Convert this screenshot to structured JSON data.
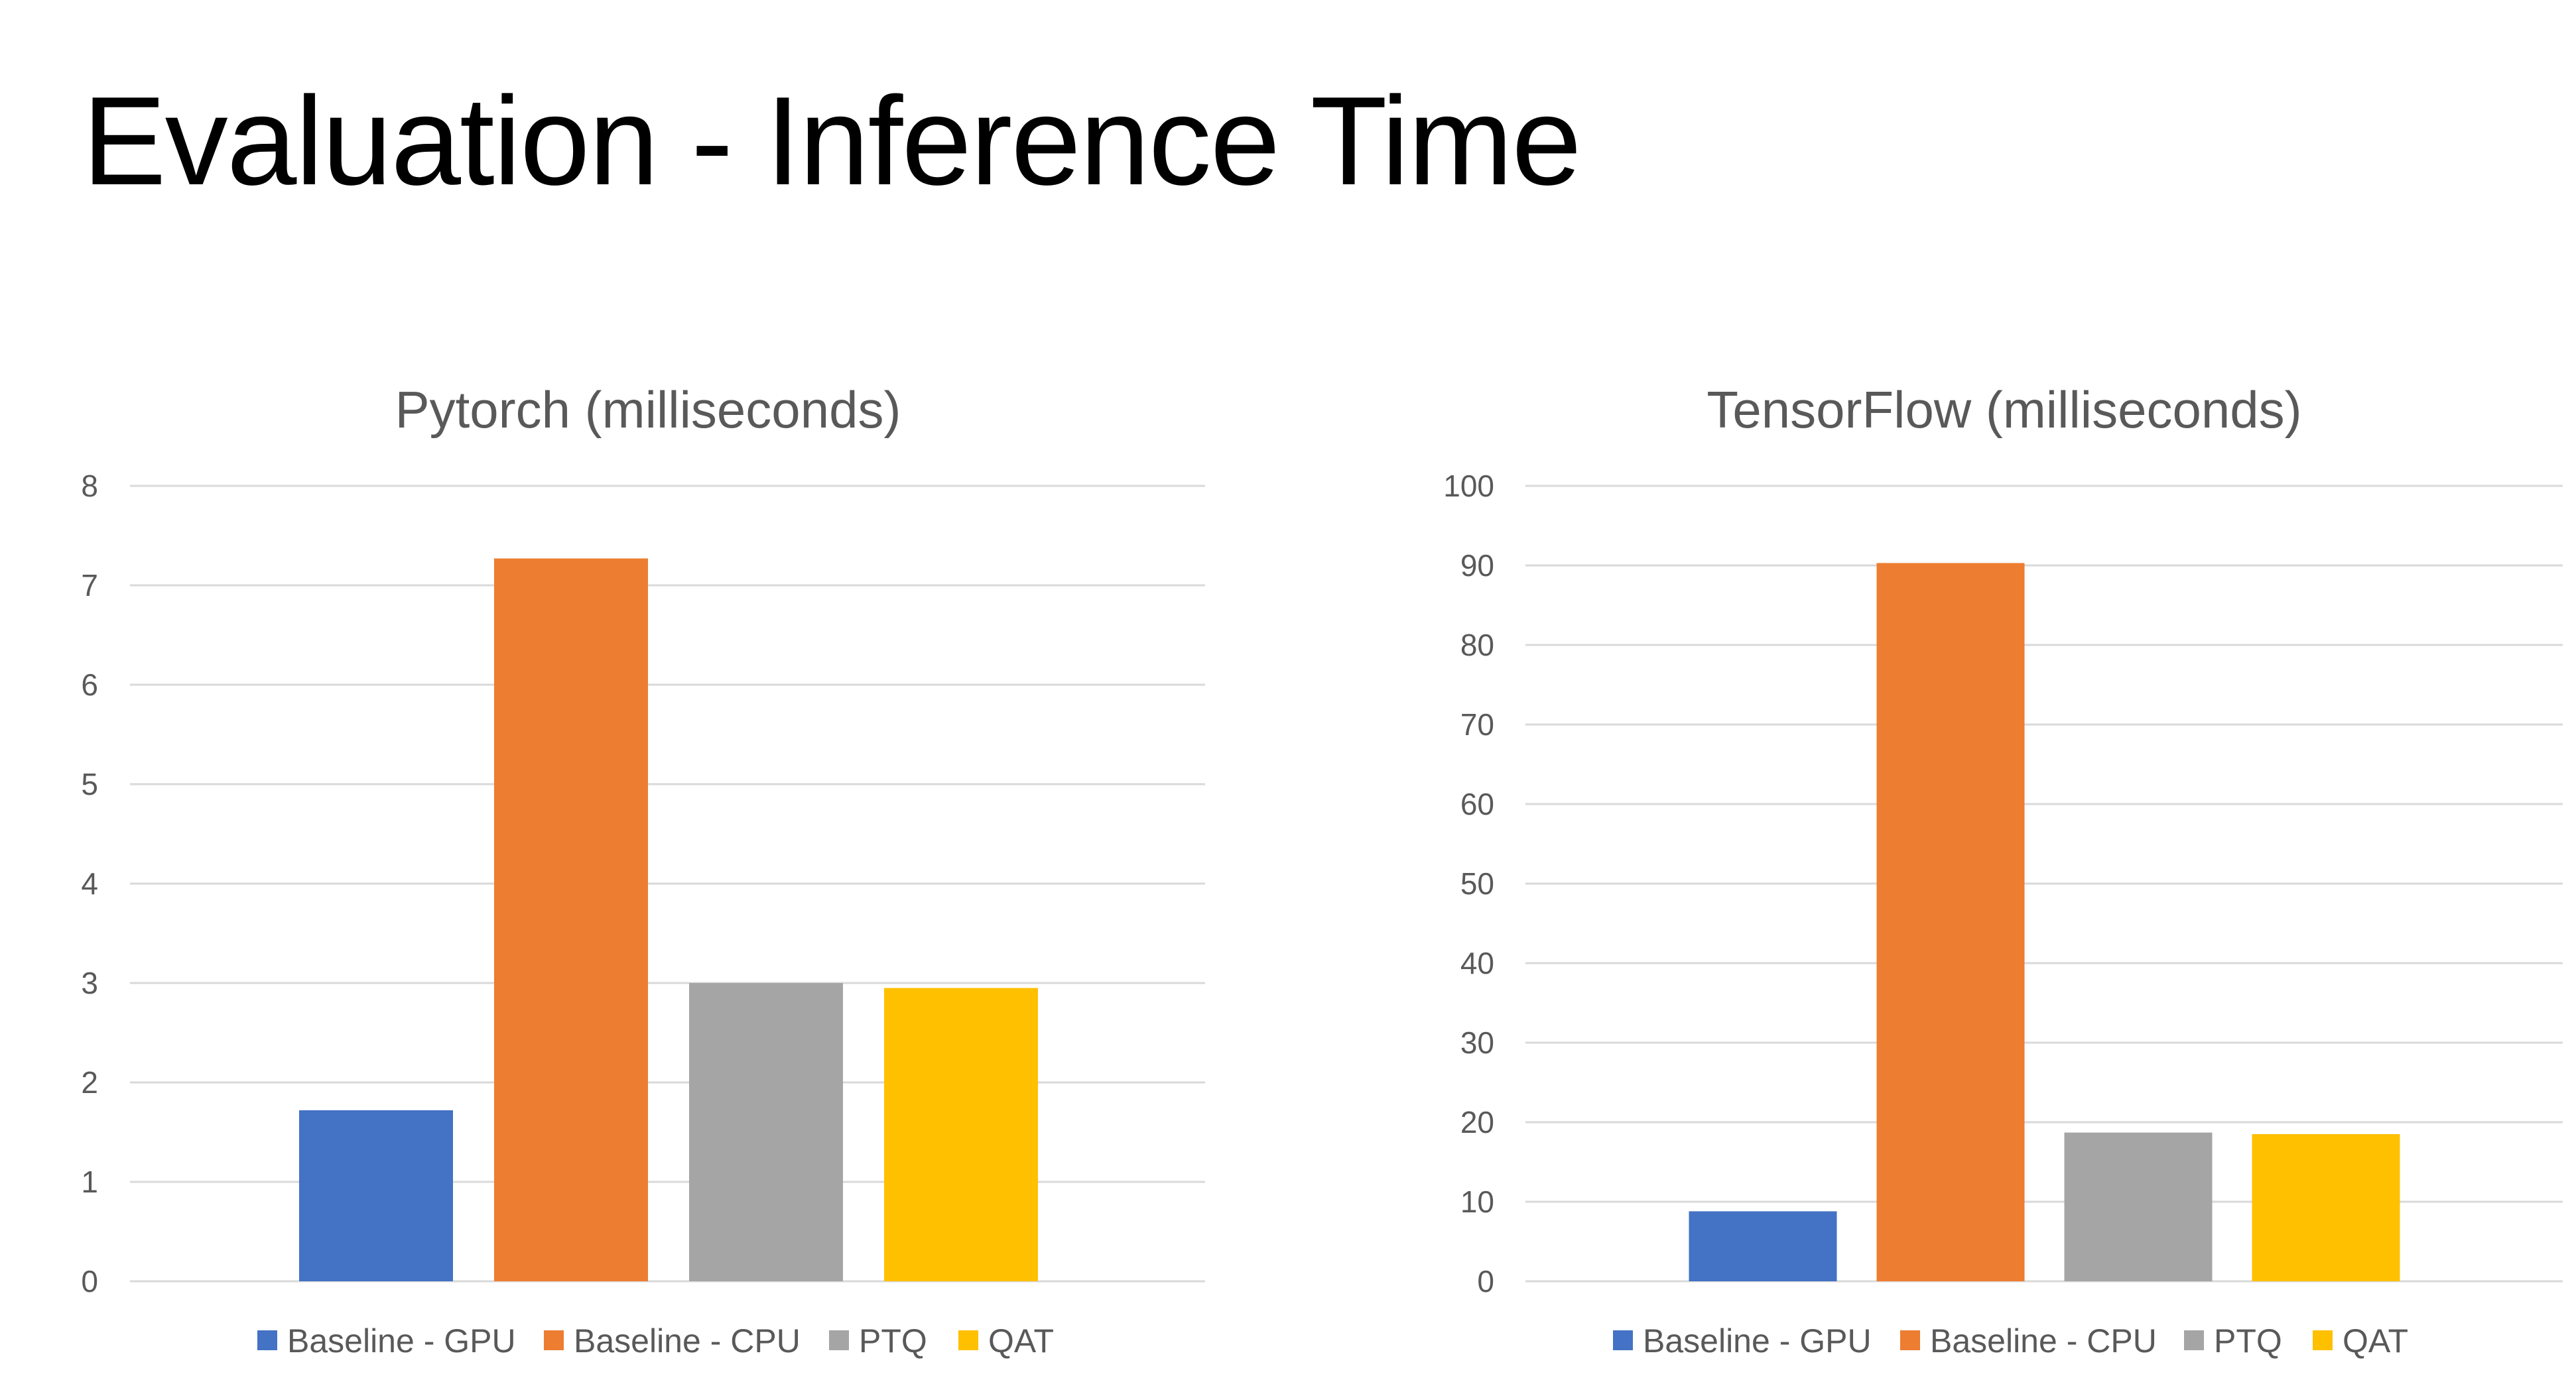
{
  "page": {
    "title": "Evaluation - Inference Time"
  },
  "chart_data": [
    {
      "type": "bar",
      "title": "Pytorch (milliseconds)",
      "xlabel": "",
      "ylabel": "",
      "ylim": [
        0,
        8
      ],
      "y_ticks": [
        "0",
        "1",
        "2",
        "3",
        "4",
        "5",
        "6",
        "7",
        "8"
      ],
      "grid": true,
      "legend_position": "bottom",
      "series": [
        {
          "name": "Baseline - GPU",
          "value": 1.72,
          "color": "#4472C4"
        },
        {
          "name": "Baseline - CPU",
          "value": 7.27,
          "color": "#ED7D31"
        },
        {
          "name": "PTQ",
          "value": 3.0,
          "color": "#A5A5A5"
        },
        {
          "name": "QAT",
          "value": 2.95,
          "color": "#FFC000"
        }
      ]
    },
    {
      "type": "bar",
      "title": "TensorFlow (milliseconds)",
      "xlabel": "",
      "ylabel": "",
      "ylim": [
        0,
        100
      ],
      "y_ticks": [
        "0",
        "10",
        "20",
        "30",
        "40",
        "50",
        "60",
        "70",
        "80",
        "90",
        "100"
      ],
      "grid": true,
      "legend_position": "bottom",
      "series": [
        {
          "name": "Baseline - GPU",
          "value": 8.8,
          "color": "#4472C4"
        },
        {
          "name": "Baseline - CPU",
          "value": 90.3,
          "color": "#ED7D31"
        },
        {
          "name": "PTQ",
          "value": 18.7,
          "color": "#A5A5A5"
        },
        {
          "name": "QAT",
          "value": 18.5,
          "color": "#FFC000"
        }
      ]
    }
  ]
}
